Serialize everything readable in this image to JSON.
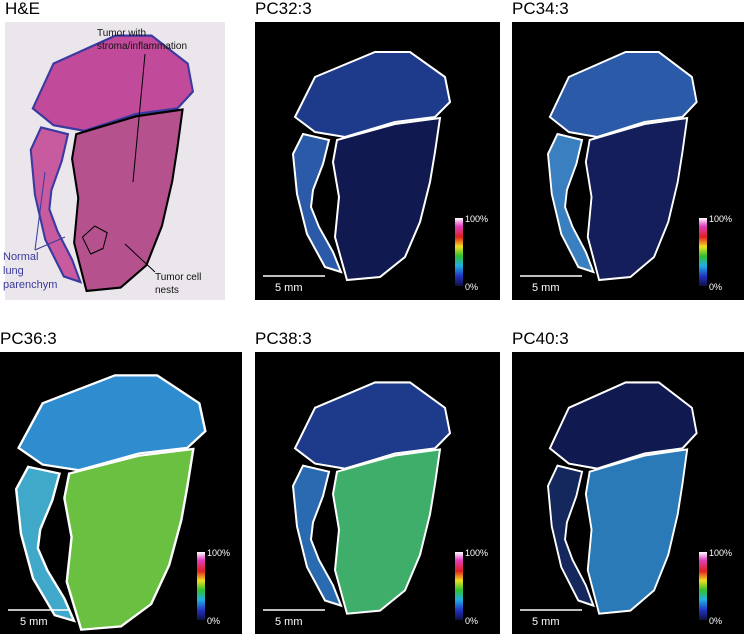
{
  "panels": [
    {
      "title": "H&E",
      "annotations": {
        "tumor_stroma": [
          "Tumor with",
          "stroma/inflammation"
        ],
        "normal_lung": [
          "Normal",
          "lung",
          "parenchym"
        ],
        "tumor_nests": [
          "Tumor cell",
          "nests"
        ]
      }
    },
    {
      "title": "PC32:3",
      "scale_bar": "5 mm",
      "colorbar_max": "100%",
      "colorbar_min": "0%"
    },
    {
      "title": "PC34:3",
      "scale_bar": "5 mm",
      "colorbar_max": "100%",
      "colorbar_min": "0%"
    },
    {
      "title": "PC36:3",
      "scale_bar": "5 mm",
      "colorbar_max": "100%",
      "colorbar_min": "0%"
    },
    {
      "title": "PC38:3",
      "scale_bar": "5 mm",
      "colorbar_max": "100%",
      "colorbar_min": "0%"
    },
    {
      "title": "PC40:3",
      "scale_bar": "5 mm",
      "colorbar_max": "100%",
      "colorbar_min": "0%"
    }
  ]
}
